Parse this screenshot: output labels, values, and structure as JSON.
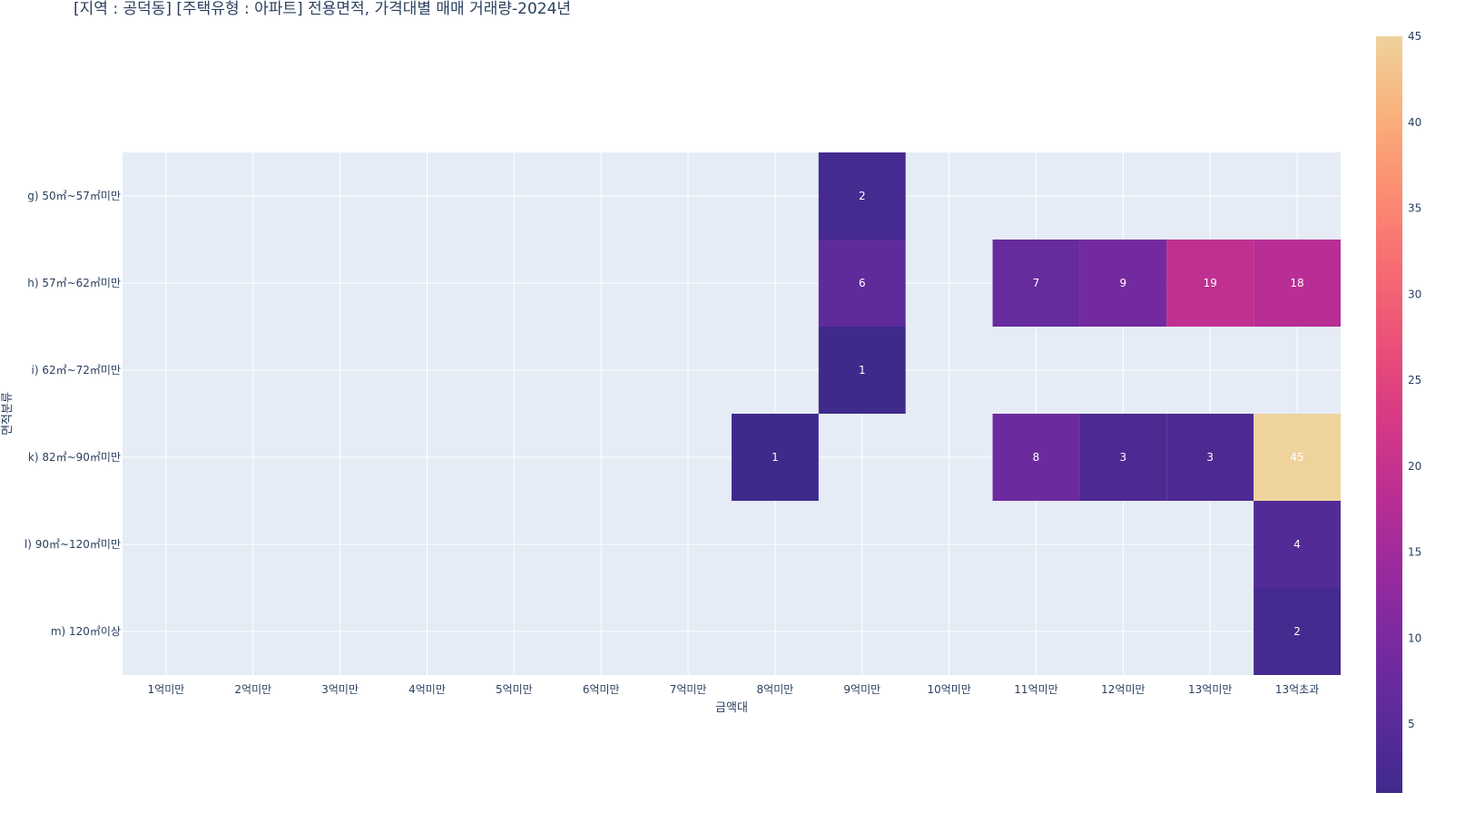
{
  "chart_data": {
    "type": "heatmap",
    "title": "[지역 : 공덕동] [주택유형 : 아파트] 전용면적, 가격대별 매매 거래량-2024년",
    "xlabel": "금액대",
    "ylabel": "면적분류",
    "x_categories": [
      "1억미만",
      "2억미만",
      "3억미만",
      "4억미만",
      "5억미만",
      "6억미만",
      "7억미만",
      "8억미만",
      "9억미만",
      "10억미만",
      "11억미만",
      "12억미만",
      "13억미만",
      "13억초과"
    ],
    "y_categories": [
      "g) 50㎡~57㎡미만",
      "h) 57㎡~62㎡미만",
      "i) 62㎡~72㎡미만",
      "k) 82㎡~90㎡미만",
      "l) 90㎡~120㎡미만",
      "m) 120㎡이상"
    ],
    "cells": [
      {
        "x": "9억미만",
        "y": "g) 50㎡~57㎡미만",
        "value": 2
      },
      {
        "x": "9억미만",
        "y": "h) 57㎡~62㎡미만",
        "value": 6
      },
      {
        "x": "11억미만",
        "y": "h) 57㎡~62㎡미만",
        "value": 7
      },
      {
        "x": "12억미만",
        "y": "h) 57㎡~62㎡미만",
        "value": 9
      },
      {
        "x": "13억미만",
        "y": "h) 57㎡~62㎡미만",
        "value": 19
      },
      {
        "x": "13억초과",
        "y": "h) 57㎡~62㎡미만",
        "value": 18
      },
      {
        "x": "9억미만",
        "y": "i) 62㎡~72㎡미만",
        "value": 1
      },
      {
        "x": "8억미만",
        "y": "k) 82㎡~90㎡미만",
        "value": 1
      },
      {
        "x": "11억미만",
        "y": "k) 82㎡~90㎡미만",
        "value": 8
      },
      {
        "x": "12억미만",
        "y": "k) 82㎡~90㎡미만",
        "value": 3
      },
      {
        "x": "13억미만",
        "y": "k) 82㎡~90㎡미만",
        "value": 3
      },
      {
        "x": "13억초과",
        "y": "k) 82㎡~90㎡미만",
        "value": 45
      },
      {
        "x": "13억초과",
        "y": "l) 90㎡~120㎡미만",
        "value": 4
      },
      {
        "x": "13억초과",
        "y": "m) 120㎡이상",
        "value": 2
      }
    ],
    "colorscale": [
      "#3f2a8c",
      "#5b2b9a",
      "#7a2aa0",
      "#9b2a9e",
      "#bd2f92",
      "#d93a84",
      "#ec5278",
      "#f76d72",
      "#fc8f72",
      "#f9b17b",
      "#efd39d"
    ],
    "colorbar": {
      "min": 1,
      "max": 45,
      "ticks": [
        5,
        10,
        15,
        20,
        25,
        30,
        35,
        40,
        45
      ]
    },
    "grid": true,
    "plot_background": "#e5ecf6"
  }
}
